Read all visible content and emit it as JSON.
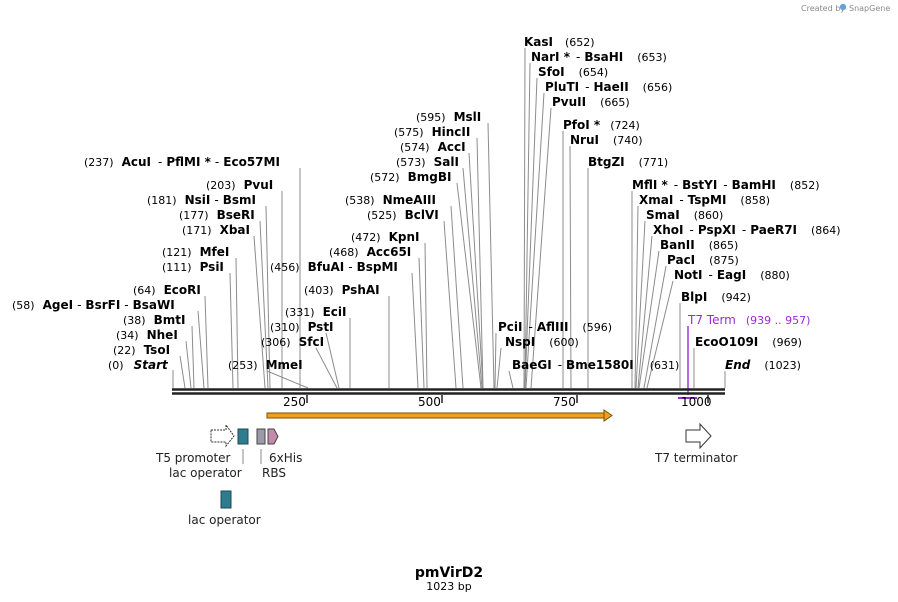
{
  "brand": {
    "created_by": "Created by",
    "name": "SnapGene"
  },
  "plasmid": {
    "name": "pmVirD2",
    "length": "1023 bp"
  },
  "axis_ticks": [
    "250",
    "500",
    "750",
    "1000"
  ],
  "sites_left": [
    {
      "pos": "(0)",
      "name": "Start"
    },
    {
      "pos": "(22)",
      "name": "TsoI"
    },
    {
      "pos": "(34)",
      "name": "NheI"
    },
    {
      "pos": "(38)",
      "name": "BmtI"
    },
    {
      "pos": "(58)",
      "name": "AgeI",
      "name2": "BsrFI",
      "name3": "BsaWI"
    },
    {
      "pos": "(64)",
      "name": "EcoRI"
    },
    {
      "pos": "(111)",
      "name": "PsiI"
    },
    {
      "pos": "(121)",
      "name": "MfeI"
    },
    {
      "pos": "(171)",
      "name": "XbaI"
    },
    {
      "pos": "(177)",
      "name": "BseRI"
    },
    {
      "pos": "(181)",
      "name": "NsiI",
      "name2": "BsmI"
    },
    {
      "pos": "(203)",
      "name": "PvuI"
    },
    {
      "pos": "(237)",
      "name": "AcuI",
      "name2": "PflMI *",
      "name3": "Eco57MI"
    },
    {
      "pos": "(253)",
      "name": "MmeI"
    },
    {
      "pos": "(306)",
      "name": "SfcI"
    },
    {
      "pos": "(310)",
      "name": "PstI"
    },
    {
      "pos": "(331)",
      "name": "EciI"
    },
    {
      "pos": "(403)",
      "name": "PshAI"
    },
    {
      "pos": "(456)",
      "name": "BfuAI",
      "name2": "BspMI"
    },
    {
      "pos": "(468)",
      "name": "Acc65I"
    },
    {
      "pos": "(472)",
      "name": "KpnI"
    },
    {
      "pos": "(525)",
      "name": "BclVI"
    },
    {
      "pos": "(538)",
      "name": "NmeAIII"
    },
    {
      "pos": "(572)",
      "name": "BmgBI"
    },
    {
      "pos": "(573)",
      "name": "SalI"
    },
    {
      "pos": "(574)",
      "name": "AccI"
    },
    {
      "pos": "(575)",
      "name": "HincII"
    },
    {
      "pos": "(595)",
      "name": "MslI"
    }
  ],
  "sites_right": [
    {
      "pos": "(596)",
      "name": "PciI",
      "name2": "AflIII"
    },
    {
      "pos": "(600)",
      "name": "NspI"
    },
    {
      "pos": "(631)",
      "name": "BaeGI",
      "name2": "Bme1580I"
    },
    {
      "pos": "(652)",
      "name": "KasI"
    },
    {
      "pos": "(653)",
      "name": "NarI *",
      "name2": "BsaHI"
    },
    {
      "pos": "(654)",
      "name": "SfoI"
    },
    {
      "pos": "(656)",
      "name": "PluTI",
      "name2": "HaeII"
    },
    {
      "pos": "(665)",
      "name": "PvuII"
    },
    {
      "pos": "(724)",
      "name": "PfoI *"
    },
    {
      "pos": "(740)",
      "name": "NruI"
    },
    {
      "pos": "(771)",
      "name": "BtgZI"
    },
    {
      "pos": "(852)",
      "name": "MflI *",
      "name2": "BstYI",
      "name3": "BamHI"
    },
    {
      "pos": "(858)",
      "name": "XmaI",
      "name2": "TspMI"
    },
    {
      "pos": "(860)",
      "name": "SmaI"
    },
    {
      "pos": "(864)",
      "name": "XhoI",
      "name2": "PspXI",
      "name3": "PaeR7I"
    },
    {
      "pos": "(865)",
      "name": "BanII"
    },
    {
      "pos": "(875)",
      "name": "PacI"
    },
    {
      "pos": "(880)",
      "name": "NotI",
      "name2": "EagI"
    },
    {
      "pos": "(942)",
      "name": "BlpI"
    },
    {
      "pos": "(969)",
      "name": "EcoO109I"
    },
    {
      "pos": "(1023)",
      "name": "End"
    }
  ],
  "t7term": {
    "name": "T7 Term",
    "range": "(939 .. 957)"
  },
  "features": {
    "t5_promoter": "T5 promoter",
    "lac_operator_1": "lac operator",
    "his_tag": "6xHis",
    "rbs": "RBS",
    "lac_operator_2": "lac operator",
    "t7_terminator": "T7 terminator"
  },
  "colors": {
    "t7term": "#9a2bd8",
    "operator": "#2e7d8f",
    "orf": "#f0a020",
    "rbs": "#c48aa8"
  }
}
